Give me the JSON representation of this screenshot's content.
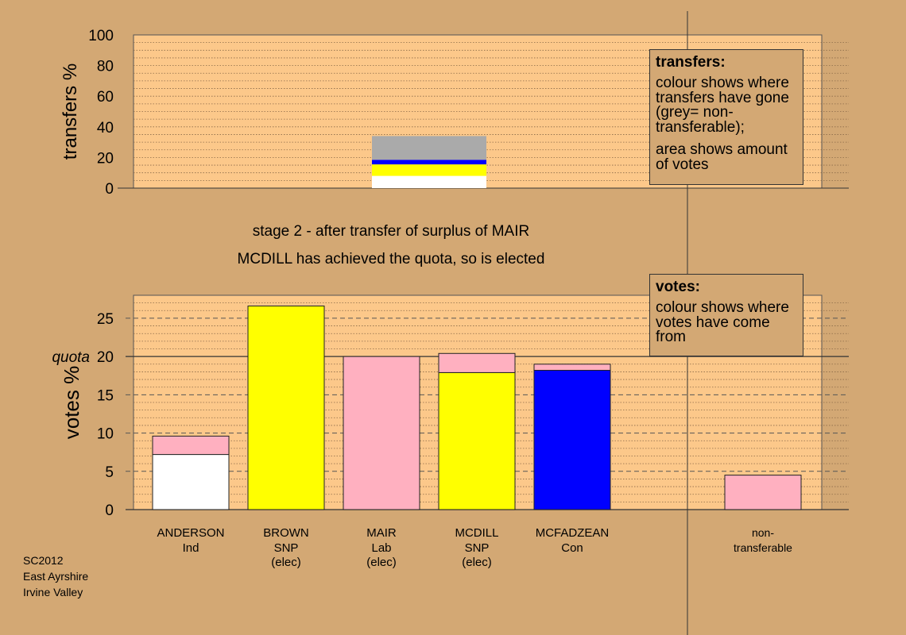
{
  "chart_data": [
    {
      "type": "bar",
      "name": "transfers",
      "ylabel": "transfers %",
      "ylim": [
        0,
        100
      ],
      "yticks": [
        0,
        20,
        40,
        60,
        80,
        100
      ],
      "categories": [
        "MAIR"
      ],
      "segments": [
        {
          "color": "#ffffff",
          "value": 8
        },
        {
          "color": "#ffff00",
          "value": 7.5
        },
        {
          "color": "#0000ff",
          "value": 3
        },
        {
          "color": "#aaaaaa",
          "value": 15.5
        }
      ]
    },
    {
      "type": "bar",
      "name": "votes",
      "ylabel": "votes %",
      "ylim": [
        0,
        28
      ],
      "yticks": [
        0,
        5,
        10,
        15,
        20,
        25
      ],
      "quota": 20,
      "quota_label": "quota",
      "candidates": [
        {
          "name": "ANDERSON",
          "party": "Ind",
          "elected": "",
          "segments": [
            {
              "color": "#ffffff",
              "value": 7.2
            },
            {
              "color": "#ffb0c0",
              "value": 2.4
            }
          ]
        },
        {
          "name": "BROWN",
          "party": "SNP",
          "elected": "(elec)",
          "segments": [
            {
              "color": "#ffff00",
              "value": 26.6
            }
          ]
        },
        {
          "name": "MAIR",
          "party": "Lab",
          "elected": "(elec)",
          "segments": [
            {
              "color": "#ffb0c0",
              "value": 20.0
            }
          ]
        },
        {
          "name": "MCDILL",
          "party": "SNP",
          "elected": "(elec)",
          "segments": [
            {
              "color": "#ffff00",
              "value": 17.9
            },
            {
              "color": "#ffb0c0",
              "value": 2.5
            }
          ]
        },
        {
          "name": "MCFADZEAN",
          "party": "Con",
          "elected": "",
          "segments": [
            {
              "color": "#0000ff",
              "value": 18.2
            },
            {
              "color": "#ffb0c0",
              "value": 0.8
            }
          ]
        },
        {
          "name": "",
          "party": "",
          "elected": "",
          "segments": []
        },
        {
          "name": "non-",
          "party": "transferable",
          "elected": "",
          "segments": [
            {
              "color": "#ffb0c0",
              "value": 4.5
            }
          ]
        }
      ]
    }
  ],
  "stage_title": "stage 2 - after transfer of surplus of MAIR",
  "stage_note": "MCDILL has achieved the quota, so is elected",
  "legend_transfers": {
    "title": "transfers:",
    "body1": "colour shows where transfers have gone (grey= non-transferable);",
    "body2": "area shows amount of votes"
  },
  "legend_votes": {
    "title": "votes:",
    "body1": "colour shows where votes have come from"
  },
  "footer": [
    "SC2012",
    "East Ayrshire",
    "Irvine Valley"
  ],
  "colors": {
    "background": "#d3a874",
    "plot": "#fcc88a"
  }
}
